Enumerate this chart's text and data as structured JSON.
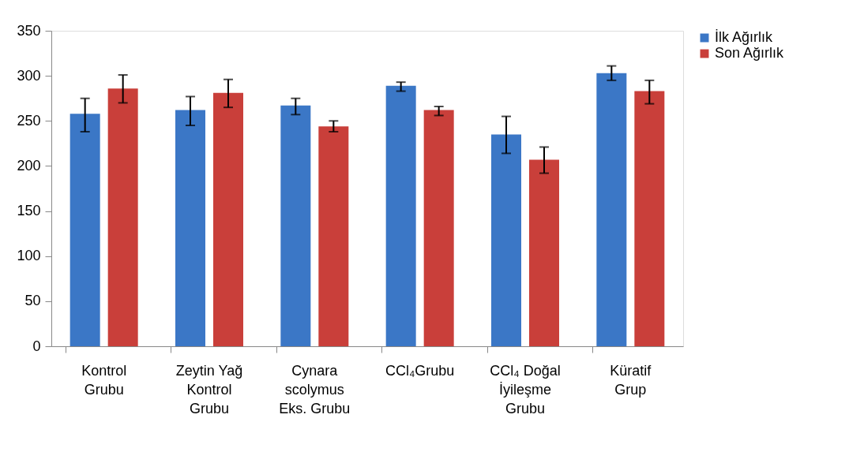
{
  "chart_data": {
    "type": "bar",
    "categories": [
      "Kontrol Grubu",
      "Zeytin Yağ Kontrol Grubu",
      "Cynara scolymus Eks. Grubu",
      "CCl₄Grubu",
      "CCl₄ Doğal İyileşme Grubu",
      "Küratif Grup"
    ],
    "series": [
      {
        "name": "İlk Ağırlık",
        "color": "#3b77c6",
        "values": [
          258,
          262,
          267,
          289,
          235,
          303
        ],
        "errors": [
          [
            238,
            275
          ],
          [
            245,
            277
          ],
          [
            257,
            275
          ],
          [
            283,
            293
          ],
          [
            214,
            255
          ],
          [
            295,
            311
          ]
        ]
      },
      {
        "name": "Son Ağırlık",
        "color": "#c93f3a",
        "values": [
          286,
          281,
          244,
          262,
          207,
          283
        ],
        "errors": [
          [
            270,
            301
          ],
          [
            265,
            296
          ],
          [
            238,
            250
          ],
          [
            256,
            266
          ],
          [
            192,
            221
          ],
          [
            269,
            295
          ]
        ]
      }
    ],
    "ylim": [
      0,
      350
    ],
    "yticks": [
      0,
      50,
      100,
      150,
      200,
      250,
      300,
      350
    ],
    "grid": false,
    "legend": "right"
  }
}
